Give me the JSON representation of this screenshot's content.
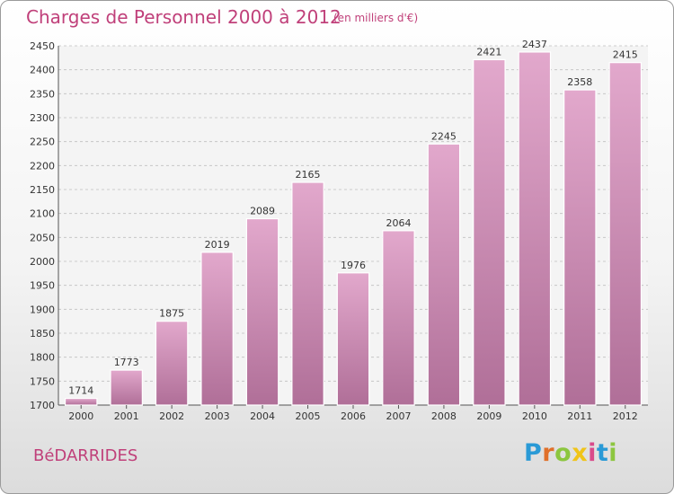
{
  "header": {
    "title": "Charges de Personnel 2000 à 2012",
    "subtitle": "(en milliers d'€)"
  },
  "footer": {
    "town": "BéDARRIDES",
    "logo_text": "Proxiti"
  },
  "colors": {
    "title": "#c0407a",
    "bar_top": "#e2a8cc",
    "bar_bottom": "#b06f98",
    "grid": "#bfbfbf",
    "logo_letters": [
      "#2a9ad6",
      "#e0702a",
      "#8cc63f",
      "#f0c419",
      "#d94b8b",
      "#2a9ad6",
      "#8cc63f"
    ]
  },
  "chart_data": {
    "type": "bar",
    "title": "Charges de Personnel 2000 à 2012",
    "subtitle": "(en milliers d'€)",
    "xlabel": "",
    "ylabel": "",
    "categories": [
      "2000",
      "2001",
      "2002",
      "2003",
      "2004",
      "2005",
      "2006",
      "2007",
      "2008",
      "2009",
      "2010",
      "2011",
      "2012"
    ],
    "values": [
      1714,
      1773,
      1875,
      2019,
      2089,
      2165,
      1976,
      2064,
      2245,
      2421,
      2437,
      2358,
      2415
    ],
    "ylim": [
      1700,
      2450
    ],
    "yticks": [
      1700,
      1750,
      1800,
      1850,
      1900,
      1950,
      2000,
      2050,
      2100,
      2150,
      2200,
      2250,
      2300,
      2350,
      2400,
      2450
    ],
    "grid": true,
    "legend": "none"
  }
}
